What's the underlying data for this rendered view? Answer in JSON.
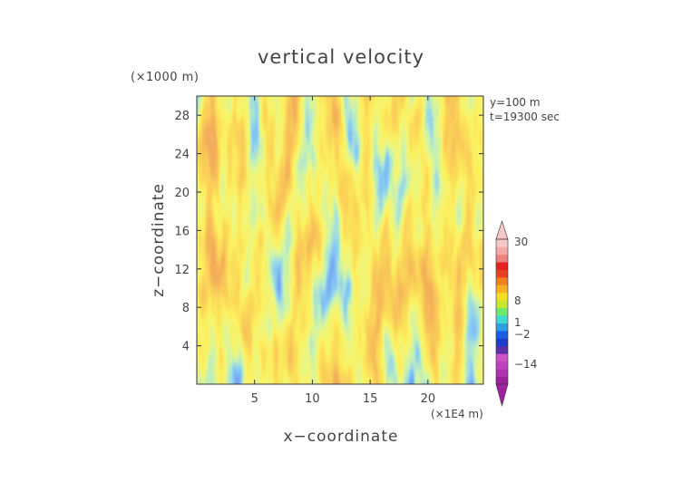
{
  "chart_data": {
    "type": "heatmap",
    "title": "vertical velocity",
    "xlabel": "x−coordinate",
    "ylabel": "z−coordinate",
    "x_unit": "(×1E4 m)",
    "y_unit": "(×1000 m)",
    "xlim": [
      0,
      24.8
    ],
    "ylim": [
      0,
      30
    ],
    "x_ticks": [
      "5",
      "10",
      "15",
      "20"
    ],
    "x_tick_values": [
      5,
      10,
      15,
      20
    ],
    "y_ticks": [
      "4",
      "8",
      "12",
      "16",
      "20",
      "24",
      "28"
    ],
    "y_tick_values": [
      4,
      8,
      12,
      16,
      20,
      24,
      28
    ],
    "annotations": [
      "y=100 m",
      "t=19300 sec"
    ],
    "colorbar": {
      "labels": [
        "30",
        "8",
        "1",
        "−2",
        "−14"
      ],
      "label_values": [
        30,
        8,
        1,
        -2,
        -14
      ],
      "colors": [
        "#a020a0",
        "#b030b0",
        "#c040c0",
        "#d050c8",
        "#5a2fa8",
        "#1e3cc8",
        "#1a5ee6",
        "#2f9fe0",
        "#40d8d0",
        "#70e870",
        "#c8e830",
        "#f2e020",
        "#f8b020",
        "#f08020",
        "#e84020",
        "#e82020",
        "#f08080",
        "#f4a8a8",
        "#f8c8c8"
      ],
      "extend": "both"
    },
    "grid": false
  }
}
